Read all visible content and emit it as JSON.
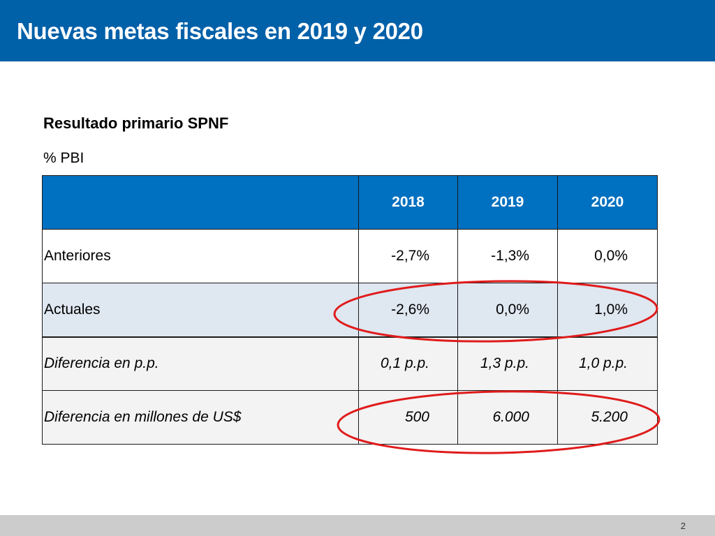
{
  "header": {
    "title": "Nuevas metas fiscales en 2019 y 2020",
    "color": "#0060a8"
  },
  "content": {
    "subtitle": "Resultado primario SPNF",
    "unit": "% PBI"
  },
  "table": {
    "columns": [
      "",
      "2018",
      "2019",
      "2020"
    ],
    "rows": [
      {
        "label": "Anteriores",
        "values": [
          "-2,7%",
          "-1,3%",
          "0,0%"
        ]
      },
      {
        "label": "Actuales",
        "values": [
          "-2,6%",
          "0,0%",
          "1,0%"
        ]
      },
      {
        "label": "Diferencia en p.p.",
        "values": [
          "0,1 p.p.",
          "1,3 p.p.",
          "1,0 p.p."
        ]
      },
      {
        "label": "Diferencia en millones de US$",
        "values": [
          "500",
          "6.000",
          "5.200"
        ]
      }
    ],
    "header_color": "#0070c0",
    "highlight_color": "#e01b1b"
  },
  "footer": {
    "page_number": "2"
  }
}
